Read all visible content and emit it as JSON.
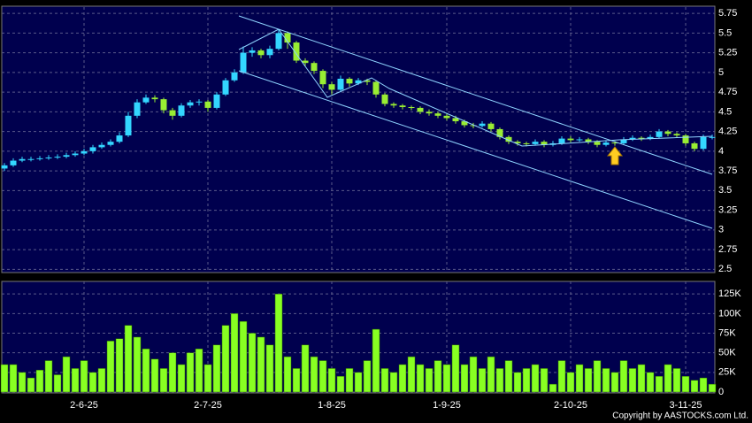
{
  "chart_data": {
    "type": "candlestick",
    "categories": [
      null,
      null,
      null,
      null,
      null,
      null,
      null,
      null,
      null,
      "2-6-25",
      null,
      null,
      null,
      null,
      null,
      null,
      null,
      null,
      null,
      null,
      null,
      null,
      null,
      "2-7-25",
      null,
      null,
      null,
      null,
      null,
      null,
      null,
      null,
      null,
      null,
      null,
      null,
      null,
      "1-8-25",
      null,
      null,
      null,
      null,
      null,
      null,
      null,
      null,
      null,
      null,
      null,
      null,
      "1-9-25",
      null,
      null,
      null,
      null,
      null,
      null,
      null,
      null,
      null,
      null,
      null,
      null,
      null,
      "2-10-25",
      null,
      null,
      null,
      null,
      null,
      null,
      null,
      null,
      null,
      null,
      null,
      null,
      "3-11-25",
      null,
      null,
      null
    ],
    "open": [
      3.78,
      3.82,
      3.88,
      3.9,
      3.9,
      3.91,
      3.92,
      3.93,
      3.95,
      3.97,
      4.0,
      4.05,
      4.08,
      4.12,
      4.2,
      4.45,
      4.62,
      4.68,
      4.66,
      4.52,
      4.45,
      4.58,
      4.62,
      4.63,
      4.55,
      4.72,
      4.9,
      5.0,
      5.25,
      5.28,
      5.22,
      5.3,
      5.5,
      5.38,
      5.15,
      5.12,
      5.02,
      4.85,
      4.78,
      4.92,
      4.86,
      4.9,
      4.88,
      4.72,
      4.6,
      4.58,
      4.56,
      4.55,
      4.5,
      4.48,
      4.45,
      4.42,
      4.38,
      4.33,
      4.32,
      4.35,
      4.28,
      4.18,
      4.12,
      4.1,
      4.09,
      4.12,
      4.08,
      4.1,
      4.16,
      4.14,
      4.15,
      4.12,
      4.08,
      4.11,
      4.1,
      4.15,
      4.17,
      4.16,
      4.18,
      4.25,
      4.22,
      4.2,
      4.1,
      4.03,
      4.18
    ],
    "high": [
      3.85,
      3.91,
      3.93,
      3.93,
      3.94,
      3.95,
      3.96,
      3.98,
      4.0,
      4.03,
      4.08,
      4.11,
      4.15,
      4.24,
      4.5,
      4.66,
      4.72,
      4.71,
      4.68,
      4.55,
      4.61,
      4.65,
      4.66,
      4.65,
      4.75,
      4.93,
      5.04,
      5.33,
      5.32,
      5.3,
      5.34,
      5.55,
      5.52,
      5.4,
      5.18,
      5.14,
      5.04,
      4.88,
      4.96,
      4.94,
      4.93,
      4.92,
      4.9,
      4.74,
      4.62,
      4.6,
      4.58,
      4.57,
      4.53,
      4.5,
      4.48,
      4.45,
      4.4,
      4.36,
      4.38,
      4.37,
      4.3,
      4.2,
      4.14,
      4.12,
      4.15,
      4.14,
      4.13,
      4.19,
      4.19,
      4.18,
      4.17,
      4.14,
      4.14,
      4.13,
      4.18,
      4.2,
      4.19,
      4.21,
      4.28,
      4.27,
      4.24,
      4.22,
      4.12,
      4.21,
      4.21
    ],
    "low": [
      3.75,
      3.8,
      3.86,
      3.87,
      3.88,
      3.89,
      3.9,
      3.91,
      3.93,
      3.95,
      3.97,
      4.03,
      4.06,
      4.1,
      4.18,
      4.42,
      4.6,
      4.62,
      4.48,
      4.4,
      4.43,
      4.55,
      4.58,
      4.5,
      4.53,
      4.7,
      4.88,
      4.98,
      5.2,
      5.18,
      5.18,
      5.28,
      5.3,
      5.12,
      5.08,
      4.98,
      4.8,
      4.72,
      4.75,
      4.82,
      4.84,
      4.84,
      4.68,
      4.57,
      4.55,
      4.53,
      4.52,
      4.47,
      4.45,
      4.42,
      4.39,
      4.35,
      4.3,
      4.29,
      4.3,
      4.25,
      4.15,
      4.09,
      4.07,
      4.06,
      4.07,
      4.05,
      4.06,
      4.08,
      4.11,
      4.12,
      4.09,
      4.05,
      4.06,
      4.07,
      4.08,
      4.13,
      4.13,
      4.14,
      4.16,
      4.19,
      4.17,
      4.07,
      4.0,
      4.01,
      4.15
    ],
    "close": [
      3.82,
      3.88,
      3.9,
      3.9,
      3.91,
      3.92,
      3.93,
      3.95,
      3.97,
      4.0,
      4.05,
      4.08,
      4.12,
      4.2,
      4.45,
      4.62,
      4.68,
      4.66,
      4.52,
      4.45,
      4.58,
      4.62,
      4.63,
      4.55,
      4.72,
      4.9,
      5.0,
      5.25,
      5.28,
      5.22,
      5.3,
      5.5,
      5.38,
      5.15,
      5.12,
      5.02,
      4.85,
      4.78,
      4.92,
      4.86,
      4.9,
      4.88,
      4.72,
      4.6,
      4.58,
      4.56,
      4.55,
      4.5,
      4.48,
      4.45,
      4.42,
      4.38,
      4.33,
      4.32,
      4.35,
      4.28,
      4.18,
      4.12,
      4.1,
      4.09,
      4.12,
      4.08,
      4.1,
      4.16,
      4.14,
      4.15,
      4.12,
      4.08,
      4.11,
      4.1,
      4.15,
      4.17,
      4.16,
      4.18,
      4.25,
      4.22,
      4.2,
      4.1,
      4.03,
      4.18,
      4.18
    ],
    "up_color": "#33d6ff",
    "down_color": "#99ee33",
    "ylim": [
      2.47,
      5.83
    ],
    "yticks": [
      2.5,
      2.75,
      3,
      3.25,
      3.5,
      3.75,
      4,
      4.25,
      4.5,
      4.75,
      5,
      5.25,
      5.5,
      5.75
    ],
    "grid": true,
    "volume": {
      "type": "bar",
      "color": "#88ff22",
      "values": [
        35000,
        35000,
        25000,
        18000,
        28000,
        40000,
        22000,
        45000,
        30000,
        40000,
        25000,
        30000,
        65000,
        68000,
        85000,
        70000,
        55000,
        42000,
        30000,
        50000,
        35000,
        50000,
        55000,
        35000,
        60000,
        85000,
        100000,
        90000,
        75000,
        70000,
        60000,
        125000,
        45000,
        30000,
        60000,
        45000,
        40000,
        30000,
        20000,
        30000,
        25000,
        40000,
        80000,
        30000,
        25000,
        35000,
        45000,
        35000,
        30000,
        40000,
        35000,
        60000,
        35000,
        45000,
        30000,
        45000,
        30000,
        40000,
        25000,
        30000,
        35000,
        30000,
        10000,
        40000,
        25000,
        35000,
        30000,
        40000,
        30000,
        25000,
        40000,
        30000,
        35000,
        25000,
        20000,
        35000,
        30000,
        20000,
        15000,
        18000,
        10000
      ],
      "ylim": [
        0,
        141000
      ],
      "yticks": [
        0,
        {
          "value": 25000,
          "label": "25K"
        },
        {
          "value": 50000,
          "label": "50K"
        },
        {
          "value": 75000,
          "label": "75K"
        },
        {
          "value": 100000,
          "label": "100K"
        },
        {
          "value": 125000,
          "label": "125K"
        }
      ]
    },
    "source": "Copyright by AASTOCKS.com Ltd."
  }
}
